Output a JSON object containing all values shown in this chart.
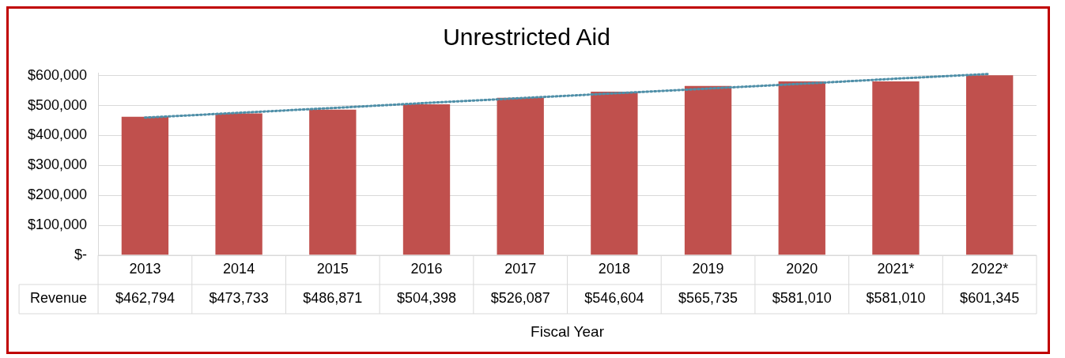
{
  "chart_data": {
    "type": "bar",
    "title": "Unrestricted Aid",
    "xlabel": "Fiscal Year",
    "categories": [
      "2013",
      "2014",
      "2015",
      "2016",
      "2017",
      "2018",
      "2019",
      "2020",
      "2021*",
      "2022*"
    ],
    "series": [
      {
        "name": "Revenue",
        "color": "#c0504d",
        "values": [
          462794,
          473733,
          486871,
          504398,
          526087,
          546604,
          565735,
          581010,
          581010,
          601345
        ],
        "value_labels": [
          "$462,794",
          "$473,733",
          "$486,871",
          "$504,398",
          "$526,087",
          "$546,604",
          "$565,735",
          "$581,010",
          "$581,010",
          "$601,345"
        ]
      },
      {
        "type": "line",
        "color": "#4f8fa8",
        "line_style": "dotted",
        "marker": "none",
        "values": [
          460000,
          476000,
          492000,
          509000,
          525000,
          541000,
          557000,
          573000,
          590000,
          606000
        ]
      }
    ],
    "ylim": [
      0,
      610000
    ],
    "yticks": [
      {
        "value": 0,
        "label": "$-"
      },
      {
        "value": 100000,
        "label": "$100,000"
      },
      {
        "value": 200000,
        "label": "$200,000"
      },
      {
        "value": 300000,
        "label": "$300,000"
      },
      {
        "value": 400000,
        "label": "$400,000"
      },
      {
        "value": 500000,
        "label": "$500,000"
      },
      {
        "value": 600000,
        "label": "$600,000"
      }
    ],
    "grid": "y",
    "legend": false
  }
}
